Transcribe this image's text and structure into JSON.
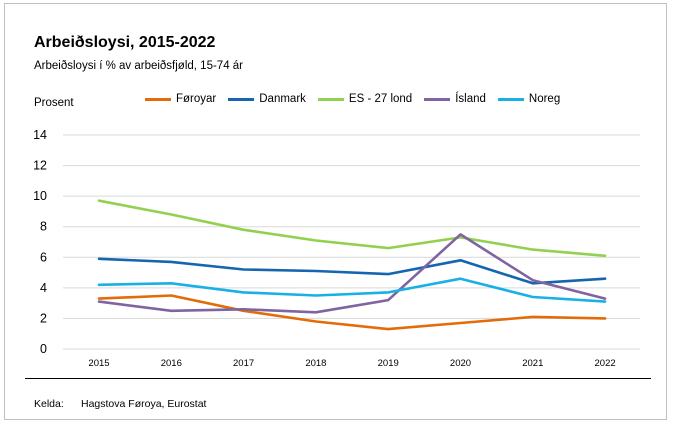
{
  "colors": {
    "Føroyar": "#e36c0a",
    "Danmark": "#1565b0",
    "ES - 27 lond": "#92d050",
    "Ísland": "#8064a2",
    "Noreg": "#19b0e6",
    "grid": "#d9d9d9"
  },
  "source": {
    "label": "Kelda:",
    "text": "Hagstova Føroya, Eurostat"
  },
  "chart_data": {
    "type": "line",
    "title": "Arbeiðsloysi, 2015-2022",
    "subtitle": "Arbeiðsloysi í % av arbeiðsfjøld, 15-74 ár",
    "ylabel": "Prosent",
    "xlabel": "",
    "ylim": [
      0,
      14
    ],
    "yticks": [
      "0",
      "2",
      "4",
      "6",
      "8",
      "10",
      "12",
      "14"
    ],
    "categories": [
      "2015",
      "2016",
      "2017",
      "2018",
      "2019",
      "2020",
      "2021",
      "2022"
    ],
    "grid": "horizontal",
    "legend_position": "top",
    "series": [
      {
        "name": "Føroyar",
        "values": [
          3.3,
          3.5,
          2.5,
          1.8,
          1.3,
          1.7,
          2.1,
          2.0
        ]
      },
      {
        "name": "Danmark",
        "values": [
          5.9,
          5.7,
          5.2,
          5.1,
          4.9,
          5.8,
          4.3,
          4.6
        ]
      },
      {
        "name": "ES - 27 lond",
        "values": [
          9.7,
          8.8,
          7.8,
          7.1,
          6.6,
          7.3,
          6.5,
          6.1
        ]
      },
      {
        "name": "Ísland",
        "values": [
          3.1,
          2.5,
          2.6,
          2.4,
          3.2,
          7.5,
          4.5,
          3.3
        ]
      },
      {
        "name": "Noreg",
        "values": [
          4.2,
          4.3,
          3.7,
          3.5,
          3.7,
          4.6,
          3.4,
          3.1
        ]
      }
    ]
  }
}
